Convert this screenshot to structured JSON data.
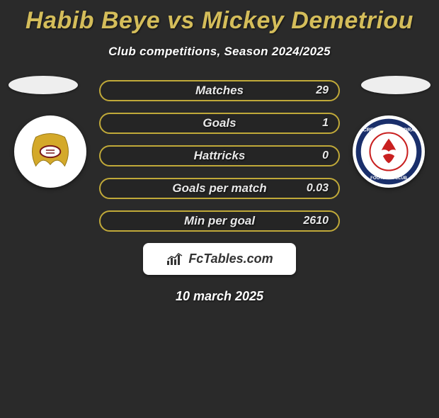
{
  "title": "Habib Beye vs Mickey Demetriou",
  "title_color": "#d4bd5a",
  "subtitle": "Club competitions, Season 2024/2025",
  "date": "10 march 2025",
  "logo_text": "FcTables.com",
  "pill_border_color": "#c0a939",
  "stats": [
    {
      "label": "Matches",
      "value": "29"
    },
    {
      "label": "Goals",
      "value": "1"
    },
    {
      "label": "Hattricks",
      "value": "0"
    },
    {
      "label": "Goals per match",
      "value": "0.03"
    },
    {
      "label": "Min per goal",
      "value": "2610"
    }
  ],
  "crest_left_name": "club-crest-left",
  "crest_right_name": "club-crest-right"
}
